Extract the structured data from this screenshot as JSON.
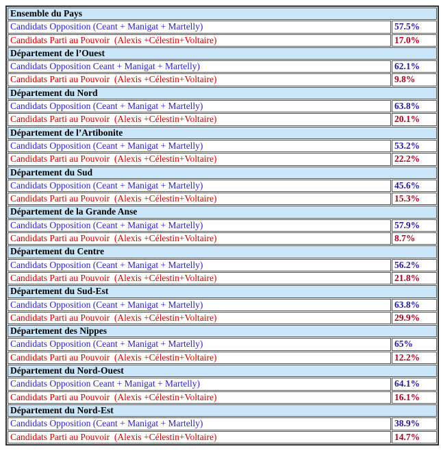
{
  "table": {
    "description": "Election results table by Haitian department",
    "colors": {
      "header_bg": "#cae6f8",
      "opposition_text": "#2b22cc",
      "power_text": "#d40000",
      "opposition_value": "#221a99",
      "power_value": "#b00020"
    },
    "sections": [
      {
        "name": "Ensemble du Pays",
        "opposition_label": "Candidats Opposition (Ceant + Manigat + Martelly)",
        "opposition_value": "57.5%",
        "power_label": "Candidats Parti au Pouvoir  (Alexis +Célestin+Voltaire)",
        "power_value": "17.0%"
      },
      {
        "name": "Département de l’Ouest",
        "opposition_label": "Candidats Opposition Ceant + Manigat + Martelly)",
        "opposition_value": "62.1%",
        "power_label": "Candidats Parti au Pouvoir  (Alexis +Célestin+Voltaire)",
        "power_value": "9.8%"
      },
      {
        "name": "Département du Nord",
        "opposition_label": "Candidats Opposition (Ceant + Manigat + Martelly)",
        "opposition_value": "63.8%",
        "power_label": "Candidats Parti au Pouvoir  (Alexis +Célestin+Voltaire)",
        "power_value": "20.1%"
      },
      {
        "name": "Département de l’Artibonite",
        "opposition_label": "Candidats Opposition (Ceant + Manigat + Martelly)",
        "opposition_value": "53.2%",
        "power_label": "Candidats Parti au Pouvoir  (Alexis +Célestin+Voltaire)",
        "power_value": "22.2%"
      },
      {
        "name": "Département du Sud",
        "opposition_label": "Candidats Opposition (Ceant + Manigat + Martelly)",
        "opposition_value": "45.6%",
        "power_label": "Candidats Parti au Pouvoir  (Alexis +Célestin+Voltaire)",
        "power_value": "15.3%"
      },
      {
        "name": "Département de la Grande Anse",
        "opposition_label": "Candidats Opposition (Ceant + Manigat + Martelly)",
        "opposition_value": "57.9%",
        "power_label": "Candidats Parti au Pouvoir  (Alexis +Célestin+Voltaire)",
        "power_value": "8.7%"
      },
      {
        "name": "Département du Centre",
        "opposition_label": "Candidats Opposition (Ceant + Manigat + Martelly)",
        "opposition_value": "56.2%",
        "power_label": "Candidats Parti au Pouvoir  (Alexis +Célestin+Voltaire)",
        "power_value": "21.8%"
      },
      {
        "name": "Département du Sud-Est",
        "opposition_label": "Candidats Opposition (Ceant + Manigat + Martelly)",
        "opposition_value": "63.8%",
        "power_label": "Candidats Parti au Pouvoir  (Alexis +Célestin+Voltaire)",
        "power_value": "29.9%"
      },
      {
        "name": "Département des Nippes",
        "opposition_label": "Candidats Opposition (Ceant + Manigat + Martelly)",
        "opposition_value": "65%",
        "power_label": "Candidats Parti au Pouvoir  (Alexis +Célestin+Voltaire)",
        "power_value": "12.2%"
      },
      {
        "name": "Département du Nord-Ouest",
        "opposition_label": "Candidats Opposition Ceant + Manigat + Martelly)",
        "opposition_value": "64.1%",
        "power_label": "Candidats Parti au Pouvoir  (Alexis +Célestin+Voltaire)",
        "power_value": "16.1%"
      },
      {
        "name": "Département du Nord-Est",
        "opposition_label": "Candidats Opposition (Ceant + Manigat + Martelly)",
        "opposition_value": "38.9%",
        "power_label": "Candidats Parti au Pouvoir  (Alexis +Célestin+Voltaire)",
        "power_value": "14.7%"
      }
    ]
  }
}
